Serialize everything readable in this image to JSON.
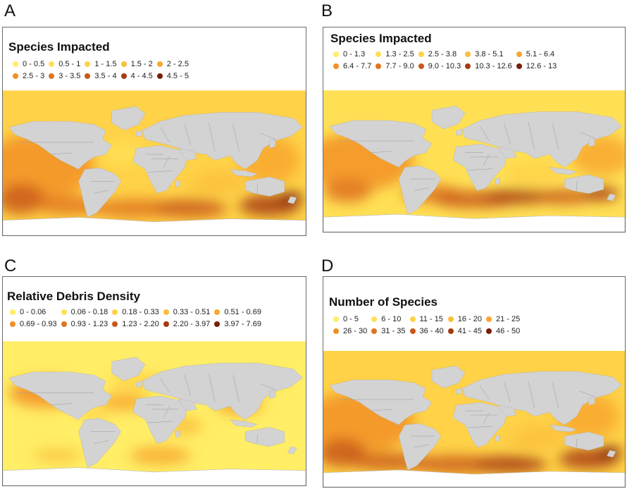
{
  "panels": {
    "A": {
      "letter": "A",
      "title": "Species Impacted",
      "legend": [
        {
          "label": "0 - 0.5",
          "color": "#ffee66"
        },
        {
          "label": "0.5 - 1",
          "color": "#ffe055"
        },
        {
          "label": "1 - 1.5",
          "color": "#ffd248"
        },
        {
          "label": "1.5 - 2",
          "color": "#fcbf3c"
        },
        {
          "label": "2 - 2.5",
          "color": "#f8a82f"
        },
        {
          "label": "2.5 - 3",
          "color": "#f29027"
        },
        {
          "label": "3 - 3.5",
          "color": "#e07420"
        },
        {
          "label": "3.5 - 4",
          "color": "#c9581a"
        },
        {
          "label": "4 - 4.5",
          "color": "#a63a12"
        },
        {
          "label": "4.5 - 5",
          "color": "#7a1e0a"
        }
      ]
    },
    "B": {
      "letter": "B",
      "title": "Species Impacted",
      "legend": [
        {
          "label": "0 - 1.3",
          "color": "#ffee66"
        },
        {
          "label": "1.3 - 2.5",
          "color": "#ffe055"
        },
        {
          "label": "2.5 - 3.8",
          "color": "#ffd248"
        },
        {
          "label": "3.8 - 5.1",
          "color": "#fcbf3c"
        },
        {
          "label": "5.1 - 6.4",
          "color": "#f8a82f"
        },
        {
          "label": "6.4 - 7.7",
          "color": "#f29027"
        },
        {
          "label": "7.7 - 9.0",
          "color": "#e07420"
        },
        {
          "label": "9.0 - 10.3",
          "color": "#c9581a"
        },
        {
          "label": "10.3 - 12.6",
          "color": "#a63a12"
        },
        {
          "label": "12.6 - 13",
          "color": "#7a1e0a"
        }
      ]
    },
    "C": {
      "letter": "C",
      "title": "Relative Debris Density",
      "legend": [
        {
          "label": "0 - 0.06",
          "color": "#ffee66"
        },
        {
          "label": "0.06 - 0.18",
          "color": "#ffe055"
        },
        {
          "label": "0.18 - 0.33",
          "color": "#ffd248"
        },
        {
          "label": "0.33 - 0.51",
          "color": "#fcbf3c"
        },
        {
          "label": "0.51 - 0.69",
          "color": "#f8a82f"
        },
        {
          "label": "0.69 - 0.93",
          "color": "#f29027"
        },
        {
          "label": "0.93 - 1.23",
          "color": "#e07420"
        },
        {
          "label": "1.23 - 2.20",
          "color": "#c9581a"
        },
        {
          "label": "2.20 - 3.97",
          "color": "#a63a12"
        },
        {
          "label": "3.97 - 7.69",
          "color": "#7a1e0a"
        }
      ]
    },
    "D": {
      "letter": "D",
      "title": "Number of Species",
      "legend": [
        {
          "label": "0 - 5",
          "color": "#ffee66"
        },
        {
          "label": "6 - 10",
          "color": "#ffe055"
        },
        {
          "label": "11 - 15",
          "color": "#ffd248"
        },
        {
          "label": "16 - 20",
          "color": "#fcbf3c"
        },
        {
          "label": "21 - 25",
          "color": "#f8a82f"
        },
        {
          "label": "26 - 30",
          "color": "#f29027"
        },
        {
          "label": "31 - 35",
          "color": "#e07420"
        },
        {
          "label": "36 - 40",
          "color": "#c9581a"
        },
        {
          "label": "41 - 45",
          "color": "#a63a12"
        },
        {
          "label": "46 - 50",
          "color": "#7a1e0a"
        }
      ]
    }
  },
  "colors": {
    "land": "#d3d3d3",
    "land_border": "#9a9a9a",
    "ice": "#ffffff",
    "frame_border": "#6b6b6b"
  }
}
